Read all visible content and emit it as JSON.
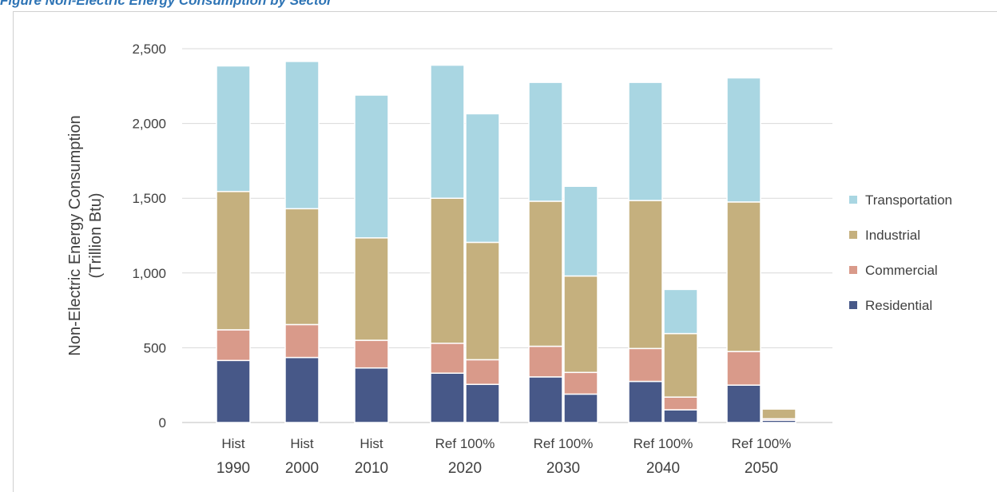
{
  "figure_caption": "Figure Non-Electric Energy Consumption by Sector",
  "chart_data": {
    "type": "bar",
    "stacked": true,
    "ylabel_lines": [
      "Non-Electric Energy Consumption",
      "(Trillion Btu)"
    ],
    "ylim": [
      0,
      2500
    ],
    "yticks": [
      "0",
      "500",
      "1,000",
      "1,500",
      "2,000",
      "2,500"
    ],
    "grid": true,
    "legend_position": "right",
    "groups": [
      {
        "label_top": "Hist",
        "label_bottom": "1990"
      },
      {
        "label_top": "Hist",
        "label_bottom": "2000"
      },
      {
        "label_top": "Hist",
        "label_bottom": "2010"
      },
      {
        "label_top": "Ref 100%",
        "label_bottom": "2020"
      },
      {
        "label_top": "Ref 100%",
        "label_bottom": "2030"
      },
      {
        "label_top": "Ref 100%",
        "label_bottom": "2040"
      },
      {
        "label_top": "Ref 100%",
        "label_bottom": "2050"
      }
    ],
    "series": [
      {
        "name": "Residential",
        "color": "#475888",
        "values": [
          415,
          435,
          365,
          330,
          255,
          305,
          190,
          275,
          85,
          250,
          15
        ]
      },
      {
        "name": "Commercial",
        "color": "#d99a8a",
        "values": [
          205,
          220,
          185,
          200,
          165,
          205,
          145,
          220,
          85,
          225,
          10
        ]
      },
      {
        "name": "Industrial",
        "color": "#c5b07e",
        "values": [
          925,
          775,
          685,
          970,
          785,
          970,
          645,
          990,
          425,
          1000,
          65
        ]
      },
      {
        "name": "Transportation",
        "color": "#a9d6e2",
        "values": [
          840,
          985,
          955,
          890,
          860,
          795,
          600,
          790,
          295,
          830,
          0
        ]
      }
    ],
    "bars": [
      {
        "group": 0
      },
      {
        "group": 1
      },
      {
        "group": 2
      },
      {
        "group": 3
      },
      {
        "group": 3
      },
      {
        "group": 4
      },
      {
        "group": 4
      },
      {
        "group": 5
      },
      {
        "group": 5
      },
      {
        "group": 6
      },
      {
        "group": 6
      }
    ]
  }
}
